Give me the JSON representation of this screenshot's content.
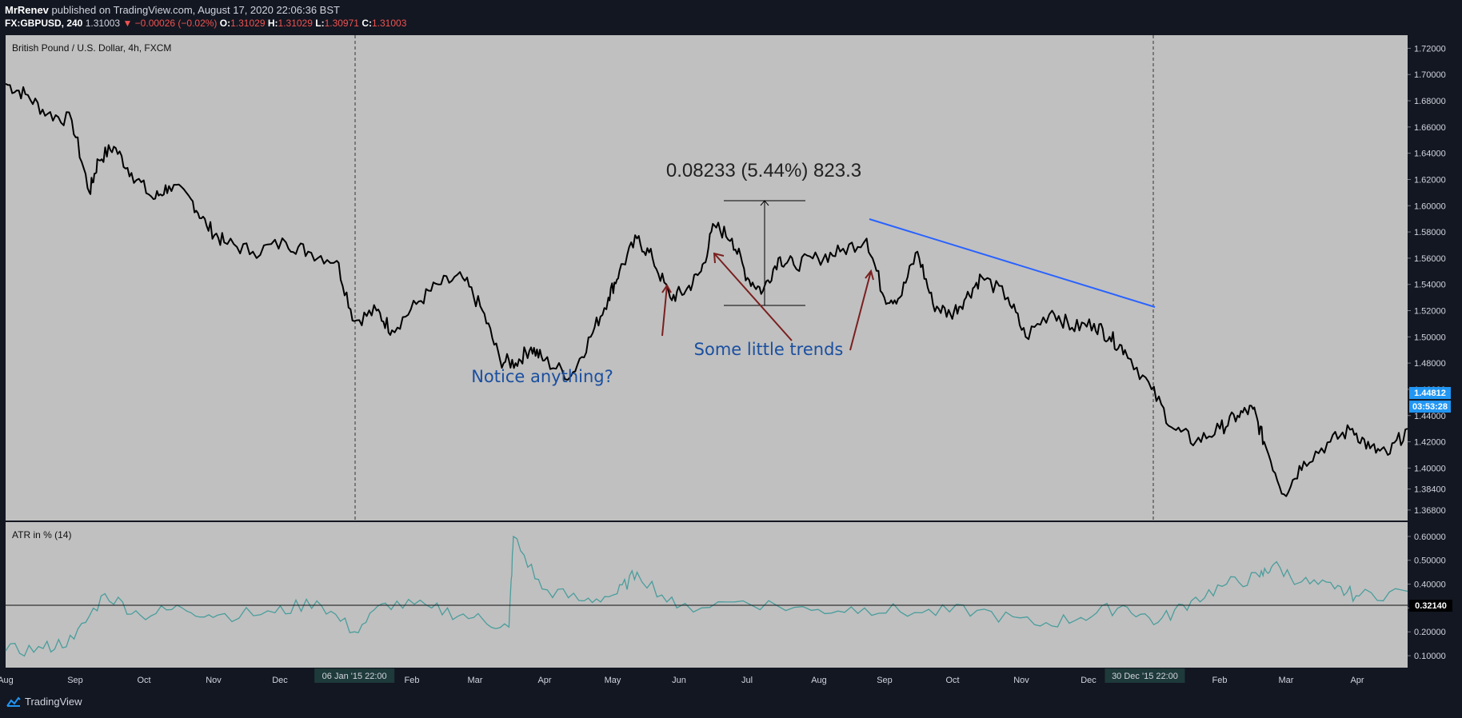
{
  "header": {
    "author": "MrRenev",
    "published": "published on TradingView.com, August 17, 2020 22:06:36 BST",
    "symbol": "FX:GBPUSD, 240",
    "last": "1.31003",
    "change_arrow": "▼",
    "change": "−0.00026 (−0.02%)",
    "o_label": "O:",
    "o_value": "1.31029",
    "h_label": "H:",
    "h_value": "1.31029",
    "l_label": "L:",
    "l_value": "1.30971",
    "c_label": "C:",
    "c_value": "1.31003"
  },
  "footer": {
    "brand": "TradingView",
    "logo_icon": "tradingview-logo-icon"
  },
  "colors": {
    "page_bg": "#131722",
    "pane_bg": "#c0c0c0",
    "price_line": "#000000",
    "atr_line": "#4a9d9c",
    "trend_line": "#2962ff",
    "arrow": "#7a1f1f",
    "annotation_text": "#1a4fa0",
    "price_label_bg": "#2196f3",
    "atr_label_bg": "#000000",
    "time_label_bg": "#1e3a3a",
    "axis_text": "#d1d4dc"
  },
  "chart_data": [
    {
      "type": "line",
      "title": "British Pound / U.S. Dollar, 4h, FXCM",
      "xlabel": "",
      "ylabel": "",
      "x_tick_labels": [
        "Aug",
        "Sep",
        "Oct",
        "Nov",
        "Dec",
        "Feb",
        "Mar",
        "Apr",
        "May",
        "Jun",
        "Jul",
        "Aug",
        "Sep",
        "Oct",
        "Nov",
        "Dec",
        "Feb",
        "Mar",
        "Apr"
      ],
      "x_range": [
        "2014-08-01",
        "2016-04-27"
      ],
      "y_range": [
        1.36,
        1.73
      ],
      "y_ticks": [
        "1.72000",
        "1.70000",
        "1.68000",
        "1.66000",
        "1.64000",
        "1.62000",
        "1.60000",
        "1.58000",
        "1.56000",
        "1.54000",
        "1.52000",
        "1.50000",
        "1.48000",
        "1.46000",
        "1.44000",
        "1.42000",
        "1.40000",
        "1.38400",
        "1.36800"
      ],
      "grid": false,
      "series": [
        {
          "x": [
            "2014-08-01",
            "2014-08-10",
            "2014-08-20",
            "2014-08-31",
            "2014-09-08",
            "2014-09-12",
            "2014-09-19",
            "2014-09-27",
            "2014-10-07",
            "2014-10-14",
            "2014-10-24",
            "2014-10-31",
            "2014-11-08",
            "2014-11-21",
            "2014-12-06",
            "2014-12-16",
            "2014-12-29",
            "2015-01-06",
            "2015-01-16",
            "2015-01-23",
            "2015-02-03",
            "2015-02-13",
            "2015-02-24",
            "2015-03-05",
            "2015-03-13",
            "2015-03-20",
            "2015-03-27",
            "2015-04-02",
            "2015-04-14",
            "2015-04-23",
            "2015-05-01",
            "2015-05-06",
            "2015-05-14",
            "2015-05-21",
            "2015-05-29",
            "2015-06-05",
            "2015-06-12",
            "2015-06-18",
            "2015-06-26",
            "2015-07-03",
            "2015-07-10",
            "2015-07-17",
            "2015-07-24",
            "2015-08-04",
            "2015-08-14",
            "2015-08-26",
            "2015-09-03",
            "2015-09-10",
            "2015-09-18",
            "2015-09-25",
            "2015-10-03",
            "2015-10-10",
            "2015-10-17",
            "2015-10-29",
            "2015-11-06",
            "2015-11-18",
            "2015-11-27",
            "2015-12-07",
            "2015-12-14",
            "2015-12-21",
            "2016-01-02",
            "2016-01-12",
            "2016-01-22",
            "2016-02-02",
            "2016-02-10",
            "2016-02-17",
            "2016-02-22",
            "2016-03-02",
            "2016-03-11",
            "2016-03-23",
            "2016-04-02",
            "2016-04-10",
            "2016-04-18",
            "2016-04-27"
          ],
          "y": [
            1.693,
            1.685,
            1.67,
            1.665,
            1.61,
            1.635,
            1.645,
            1.625,
            1.605,
            1.615,
            1.605,
            1.585,
            1.572,
            1.565,
            1.572,
            1.565,
            1.558,
            1.512,
            1.52,
            1.505,
            1.525,
            1.54,
            1.545,
            1.52,
            1.482,
            1.48,
            1.492,
            1.482,
            1.47,
            1.5,
            1.53,
            1.55,
            1.575,
            1.56,
            1.53,
            1.535,
            1.55,
            1.585,
            1.575,
            1.545,
            1.535,
            1.56,
            1.555,
            1.56,
            1.565,
            1.575,
            1.53,
            1.53,
            1.565,
            1.525,
            1.517,
            1.53,
            1.546,
            1.53,
            1.5,
            1.52,
            1.507,
            1.51,
            1.5,
            1.49,
            1.46,
            1.43,
            1.42,
            1.43,
            1.44,
            1.445,
            1.42,
            1.38,
            1.405,
            1.42,
            1.43,
            1.415,
            1.41,
            1.43
          ]
        }
      ],
      "annotations": {
        "measure_label": "0.08233 (5.44%) 823.3",
        "note_left": "Notice anything?",
        "note_right": "Some little trends",
        "measure_y": [
          1.512,
          1.5943
        ],
        "trend_line": {
          "x": [
            "2015-08-27",
            "2016-01-02"
          ],
          "y": [
            1.58,
            1.51
          ]
        }
      },
      "current_price_label": "1.44812",
      "countdown_label": "03:53:28",
      "time_labels": [
        {
          "label": "06 Jan '15  22:00",
          "date": "2015-01-06"
        },
        {
          "label": "30 Dec '15  22:00",
          "date": "2015-12-30"
        }
      ]
    },
    {
      "type": "line",
      "title": "ATR in % (14)",
      "xlabel": "",
      "ylabel": "",
      "y_range": [
        0.05,
        0.66
      ],
      "y_ticks": [
        "0.60000",
        "0.50000",
        "0.40000",
        "0.30000",
        "0.20000",
        "0.10000"
      ],
      "grid": false,
      "series": [
        {
          "x": [
            "2014-08-01",
            "2014-08-18",
            "2014-09-01",
            "2014-09-15",
            "2014-10-01",
            "2014-10-20",
            "2014-11-05",
            "2014-12-01",
            "2014-12-20",
            "2015-01-06",
            "2015-01-20",
            "2015-02-10",
            "2015-03-01",
            "2015-03-17",
            "2015-03-19",
            "2015-04-01",
            "2015-04-20",
            "2015-05-05",
            "2015-05-14",
            "2015-06-01",
            "2015-07-01",
            "2015-08-01",
            "2015-08-25",
            "2015-09-20",
            "2015-10-15",
            "2015-11-10",
            "2015-12-01",
            "2015-12-20",
            "2016-01-05",
            "2016-01-20",
            "2016-02-05",
            "2016-02-20",
            "2016-02-26",
            "2016-03-10",
            "2016-03-25",
            "2016-04-05",
            "2016-04-27"
          ],
          "y": [
            0.12,
            0.13,
            0.17,
            0.36,
            0.27,
            0.3,
            0.27,
            0.28,
            0.33,
            0.2,
            0.32,
            0.3,
            0.26,
            0.22,
            0.6,
            0.38,
            0.33,
            0.36,
            0.45,
            0.3,
            0.33,
            0.29,
            0.3,
            0.28,
            0.29,
            0.23,
            0.26,
            0.31,
            0.24,
            0.33,
            0.4,
            0.43,
            0.48,
            0.41,
            0.38,
            0.35,
            0.37
          ]
        }
      ],
      "current_value_label": "0.32140"
    }
  ]
}
